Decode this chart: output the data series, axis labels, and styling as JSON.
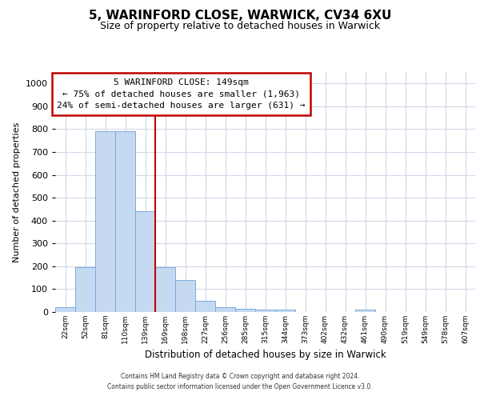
{
  "title1": "5, WARINFORD CLOSE, WARWICK, CV34 6XU",
  "title2": "Size of property relative to detached houses in Warwick",
  "xlabel": "Distribution of detached houses by size in Warwick",
  "ylabel": "Number of detached properties",
  "bin_labels": [
    "22sqm",
    "52sqm",
    "81sqm",
    "110sqm",
    "139sqm",
    "169sqm",
    "198sqm",
    "227sqm",
    "256sqm",
    "285sqm",
    "315sqm",
    "344sqm",
    "373sqm",
    "402sqm",
    "432sqm",
    "461sqm",
    "490sqm",
    "519sqm",
    "549sqm",
    "578sqm",
    "607sqm"
  ],
  "bar_heights": [
    20,
    195,
    790,
    790,
    440,
    195,
    140,
    50,
    20,
    15,
    10,
    10,
    0,
    0,
    0,
    10,
    0,
    0,
    0,
    0,
    0
  ],
  "bar_color": "#C5D9F0",
  "bar_edgecolor": "#7AABDC",
  "vline_x": 4.5,
  "vline_color": "#C00000",
  "ylim": [
    0,
    1050
  ],
  "yticks": [
    0,
    100,
    200,
    300,
    400,
    500,
    600,
    700,
    800,
    900,
    1000
  ],
  "annotation_text": "5 WARINFORD CLOSE: 149sqm\n← 75% of detached houses are smaller (1,963)\n24% of semi-detached houses are larger (631) →",
  "annotation_box_color": "#ffffff",
  "annotation_box_edgecolor": "#C00000",
  "footer_text": "Contains HM Land Registry data © Crown copyright and database right 2024.\nContains public sector information licensed under the Open Government Licence v3.0.",
  "background_color": "#ffffff",
  "grid_color": "#d0d8e8",
  "title1_fontsize": 11,
  "title2_fontsize": 9
}
